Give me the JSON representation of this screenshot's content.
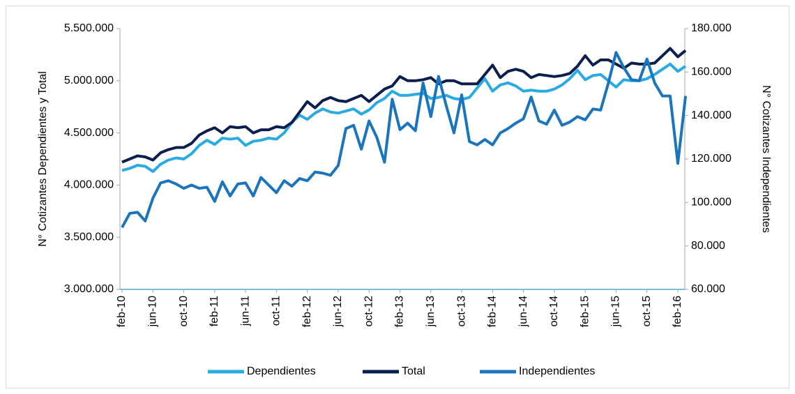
{
  "chart_data": {
    "type": "line",
    "y_label": "N° Cotizantes Dependientes y Total",
    "y2_label": "N° Cotizantes Independientes",
    "categories": [
      "feb-10",
      null,
      null,
      null,
      "jun-10",
      null,
      null,
      null,
      "oct-10",
      null,
      null,
      null,
      "feb-11",
      null,
      null,
      null,
      "jun-11",
      null,
      null,
      null,
      "oct-11",
      null,
      null,
      null,
      "feb-12",
      null,
      null,
      null,
      "jun-12",
      null,
      null,
      null,
      "oct-12",
      null,
      null,
      null,
      "feb-13",
      null,
      null,
      null,
      "jun-13",
      null,
      null,
      null,
      "oct-13",
      null,
      null,
      null,
      "feb-14",
      null,
      null,
      null,
      "jun-14",
      null,
      null,
      null,
      "oct-14",
      null,
      null,
      null,
      "feb-15",
      null,
      null,
      null,
      "jun-15",
      null,
      null,
      null,
      "oct-15",
      null,
      null,
      null,
      "feb-16",
      null
    ],
    "series": [
      {
        "name": "Dependientes",
        "color": "#29abe2",
        "axis": "y",
        "values": [
          4140000,
          4160000,
          4190000,
          4180000,
          4130000,
          4200000,
          4240000,
          4260000,
          4250000,
          4300000,
          4380000,
          4430000,
          4390000,
          4450000,
          4440000,
          4450000,
          4380000,
          4420000,
          4430000,
          4450000,
          4440000,
          4500000,
          4600000,
          4670000,
          4630000,
          4690000,
          4730000,
          4700000,
          4690000,
          4710000,
          4730000,
          4680000,
          4720000,
          4790000,
          4830000,
          4900000,
          4860000,
          4860000,
          4870000,
          4880000,
          4830000,
          4840000,
          4860000,
          4830000,
          4820000,
          4840000,
          4930000,
          5020000,
          4900000,
          4960000,
          4980000,
          4950000,
          4900000,
          4910000,
          4900000,
          4900000,
          4920000,
          4960000,
          5020000,
          5100000,
          5010000,
          5050000,
          5060000,
          5000000,
          4940000,
          5010000,
          5000000,
          5000000,
          5020000,
          5060000,
          5110000,
          5160000,
          5090000,
          5140000
        ]
      },
      {
        "name": "Total",
        "color": "#0b1f4f",
        "axis": "y",
        "values": [
          4220000,
          4250000,
          4280000,
          4270000,
          4240000,
          4310000,
          4340000,
          4360000,
          4360000,
          4400000,
          4480000,
          4520000,
          4550000,
          4500000,
          4560000,
          4550000,
          4560000,
          4500000,
          4530000,
          4530000,
          4560000,
          4550000,
          4600000,
          4700000,
          4800000,
          4740000,
          4810000,
          4840000,
          4810000,
          4800000,
          4830000,
          4860000,
          4800000,
          4860000,
          4920000,
          4950000,
          5040000,
          5000000,
          5000000,
          5010000,
          5030000,
          4970000,
          5000000,
          5000000,
          4970000,
          4970000,
          4970000,
          5060000,
          5150000,
          5030000,
          5090000,
          5110000,
          5090000,
          5030000,
          5060000,
          5050000,
          5040000,
          5050000,
          5070000,
          5140000,
          5240000,
          5150000,
          5200000,
          5200000,
          5160000,
          5120000,
          5170000,
          5160000,
          5160000,
          5170000,
          5240000,
          5310000,
          5230000,
          5290000
        ]
      },
      {
        "name": "Independientes",
        "color": "#1b75bc",
        "axis": "y2",
        "values": [
          88500,
          95000,
          95500,
          91500,
          102000,
          109000,
          110000,
          108500,
          106500,
          108000,
          106500,
          107000,
          100500,
          109500,
          103000,
          108500,
          109000,
          103000,
          111500,
          108000,
          104500,
          110000,
          107500,
          111000,
          110000,
          114000,
          113500,
          112500,
          117000,
          134000,
          135500,
          124500,
          137500,
          130000,
          118500,
          147500,
          133500,
          136500,
          133000,
          155000,
          139500,
          158000,
          144500,
          132000,
          149500,
          128000,
          126500,
          129000,
          126500,
          132000,
          134000,
          136500,
          138500,
          148500,
          137500,
          136000,
          142500,
          135500,
          137000,
          139500,
          138000,
          143000,
          142500,
          155000,
          169000,
          162000,
          156500,
          156000,
          166000,
          155000,
          149000,
          149000,
          118000,
          149000
        ]
      }
    ],
    "ylim": [
      3000000,
      5500000
    ],
    "yticks": [
      {
        "value": 3000000,
        "label": "3.000.000"
      },
      {
        "value": 3500000,
        "label": "3.500.000"
      },
      {
        "value": 4000000,
        "label": "4.000.000"
      },
      {
        "value": 4500000,
        "label": "4.500.000"
      },
      {
        "value": 5000000,
        "label": "5.000.000"
      },
      {
        "value": 5500000,
        "label": "5.500.000"
      }
    ],
    "y2lim": [
      60000,
      180000
    ],
    "y2ticks": [
      {
        "value": 60000,
        "label": "60.000"
      },
      {
        "value": 80000,
        "label": "80.000"
      },
      {
        "value": 100000,
        "label": "100.000"
      },
      {
        "value": 120000,
        "label": "120.000"
      },
      {
        "value": 140000,
        "label": "140.000"
      },
      {
        "value": 160000,
        "label": "160.000"
      },
      {
        "value": 180000,
        "label": "180.000"
      }
    ],
    "grid": false,
    "legend": "bottom"
  }
}
